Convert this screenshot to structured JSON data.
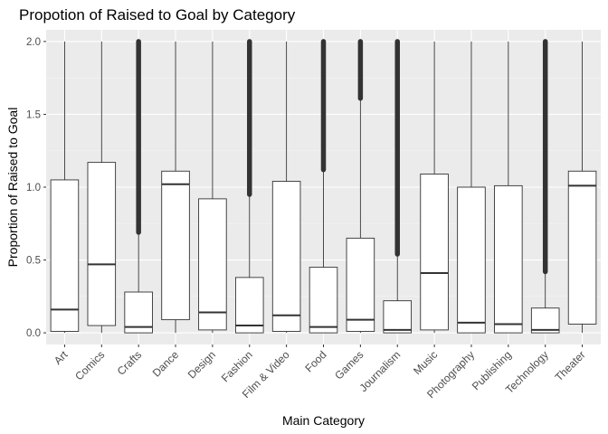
{
  "chart_data": {
    "type": "boxplot",
    "title": "Propotion of Raised to Goal by Category",
    "xlabel": "Main Category",
    "ylabel": "Proportion of Raised to Goal",
    "ylim": [
      -0.08,
      2.08
    ],
    "yticks": [
      0.0,
      0.5,
      1.0,
      1.5,
      2.0
    ],
    "ytick_labels": [
      "0.0",
      "0.5",
      "1.0",
      "1.5",
      "2.0"
    ],
    "grid": true,
    "legend": "none",
    "colors": {
      "panel": "#ebebeb",
      "grid_major": "#ffffff",
      "grid_minor": "#f4f4f4",
      "box_fill": "#ffffff",
      "box_line": "#333333",
      "outlier": "#333333"
    },
    "categories": [
      "Art",
      "Comics",
      "Crafts",
      "Dance",
      "Design",
      "Fashion",
      "Film & Video",
      "Food",
      "Games",
      "Journalism",
      "Music",
      "Photography",
      "Publishing",
      "Technology",
      "Theater"
    ],
    "boxes": [
      {
        "category": "Art",
        "whisker_low": 0.0,
        "q1": 0.01,
        "median": 0.16,
        "q3": 1.05,
        "whisker_high": 2.0,
        "outliers_from": null
      },
      {
        "category": "Comics",
        "whisker_low": 0.0,
        "q1": 0.05,
        "median": 0.47,
        "q3": 1.17,
        "whisker_high": 2.0,
        "outliers_from": null
      },
      {
        "category": "Crafts",
        "whisker_low": 0.0,
        "q1": 0.0,
        "median": 0.04,
        "q3": 0.28,
        "whisker_high": 0.69,
        "outliers_from": 0.69
      },
      {
        "category": "Dance",
        "whisker_low": 0.0,
        "q1": 0.09,
        "median": 1.02,
        "q3": 1.11,
        "whisker_high": 2.0,
        "outliers_from": null
      },
      {
        "category": "Design",
        "whisker_low": 0.0,
        "q1": 0.02,
        "median": 0.14,
        "q3": 0.92,
        "whisker_high": 2.0,
        "outliers_from": null
      },
      {
        "category": "Fashion",
        "whisker_low": 0.0,
        "q1": 0.0,
        "median": 0.05,
        "q3": 0.38,
        "whisker_high": 0.95,
        "outliers_from": 0.95
      },
      {
        "category": "Film & Video",
        "whisker_low": 0.0,
        "q1": 0.01,
        "median": 0.12,
        "q3": 1.04,
        "whisker_high": 2.0,
        "outliers_from": null
      },
      {
        "category": "Food",
        "whisker_low": 0.0,
        "q1": 0.0,
        "median": 0.04,
        "q3": 0.45,
        "whisker_high": 1.12,
        "outliers_from": 1.12
      },
      {
        "category": "Games",
        "whisker_low": 0.0,
        "q1": 0.01,
        "median": 0.09,
        "q3": 0.65,
        "whisker_high": 1.61,
        "outliers_from": 1.61
      },
      {
        "category": "Journalism",
        "whisker_low": 0.0,
        "q1": 0.0,
        "median": 0.02,
        "q3": 0.22,
        "whisker_high": 0.54,
        "outliers_from": 0.54
      },
      {
        "category": "Music",
        "whisker_low": 0.0,
        "q1": 0.02,
        "median": 0.41,
        "q3": 1.09,
        "whisker_high": 2.0,
        "outliers_from": null
      },
      {
        "category": "Photography",
        "whisker_low": 0.0,
        "q1": 0.0,
        "median": 0.07,
        "q3": 1.0,
        "whisker_high": 2.0,
        "outliers_from": null
      },
      {
        "category": "Publishing",
        "whisker_low": 0.0,
        "q1": 0.0,
        "median": 0.06,
        "q3": 1.01,
        "whisker_high": 2.0,
        "outliers_from": null
      },
      {
        "category": "Technology",
        "whisker_low": 0.0,
        "q1": 0.0,
        "median": 0.02,
        "q3": 0.17,
        "whisker_high": 0.42,
        "outliers_from": 0.42
      },
      {
        "category": "Theater",
        "whisker_low": 0.0,
        "q1": 0.06,
        "median": 1.01,
        "q3": 1.11,
        "whisker_high": 2.0,
        "outliers_from": null
      }
    ]
  }
}
